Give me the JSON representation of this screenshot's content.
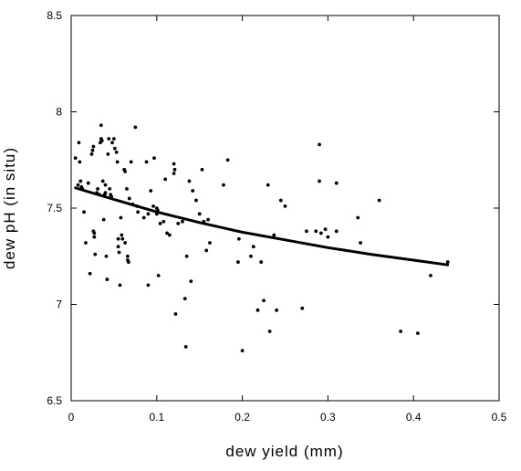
{
  "chart_data": {
    "type": "scatter",
    "title": "",
    "xlabel": "dew yield (mm)",
    "ylabel": "dew pH (in situ)",
    "xlim": [
      0,
      0.5
    ],
    "ylim": [
      6.5,
      8.5
    ],
    "x_ticks": [
      0,
      0.1,
      0.2,
      0.3,
      0.4,
      0.5
    ],
    "x_tick_labels": [
      "0",
      "0.1",
      "0.2",
      "0.3",
      "0.4",
      "0.5"
    ],
    "y_ticks": [
      6.5,
      7,
      7.5,
      8,
      8.5
    ],
    "y_tick_labels": [
      "6.5",
      "7",
      "7.5",
      "8",
      "8.5"
    ],
    "grid": false,
    "legend": "none",
    "marker_color": "#000000",
    "line_color": "#000000",
    "series": [
      {
        "type": "scatter",
        "points": [
          [
            0.005,
            7.76
          ],
          [
            0.008,
            7.62
          ],
          [
            0.009,
            7.84
          ],
          [
            0.01,
            7.74
          ],
          [
            0.011,
            7.64
          ],
          [
            0.012,
            7.61
          ],
          [
            0.013,
            7.6
          ],
          [
            0.015,
            7.48
          ],
          [
            0.017,
            7.32
          ],
          [
            0.02,
            7.63
          ],
          [
            0.022,
            7.16
          ],
          [
            0.024,
            7.78
          ],
          [
            0.025,
            7.8
          ],
          [
            0.026,
            7.82
          ],
          [
            0.026,
            7.38
          ],
          [
            0.027,
            7.37
          ],
          [
            0.027,
            7.35
          ],
          [
            0.028,
            7.26
          ],
          [
            0.03,
            7.58
          ],
          [
            0.031,
            7.6
          ],
          [
            0.033,
            7.57
          ],
          [
            0.034,
            7.84
          ],
          [
            0.035,
            7.93
          ],
          [
            0.035,
            7.86
          ],
          [
            0.036,
            7.85
          ],
          [
            0.037,
            7.64
          ],
          [
            0.038,
            7.44
          ],
          [
            0.039,
            7.57
          ],
          [
            0.04,
            7.62
          ],
          [
            0.04,
            7.58
          ],
          [
            0.041,
            7.25
          ],
          [
            0.042,
            7.13
          ],
          [
            0.043,
            7.78
          ],
          [
            0.044,
            7.86
          ],
          [
            0.045,
            7.6
          ],
          [
            0.046,
            7.57
          ],
          [
            0.047,
            7.56
          ],
          [
            0.048,
            7.84
          ],
          [
            0.05,
            7.86
          ],
          [
            0.051,
            7.81
          ],
          [
            0.053,
            7.79
          ],
          [
            0.054,
            7.74
          ],
          [
            0.055,
            7.34
          ],
          [
            0.055,
            7.3
          ],
          [
            0.056,
            7.27
          ],
          [
            0.057,
            7.1
          ],
          [
            0.058,
            7.45
          ],
          [
            0.059,
            7.36
          ],
          [
            0.06,
            7.34
          ],
          [
            0.062,
            7.7
          ],
          [
            0.063,
            7.69
          ],
          [
            0.063,
            7.32
          ],
          [
            0.065,
            7.6
          ],
          [
            0.066,
            7.25
          ],
          [
            0.066,
            7.23
          ],
          [
            0.067,
            7.22
          ],
          [
            0.068,
            7.55
          ],
          [
            0.07,
            7.74
          ],
          [
            0.072,
            7.52
          ],
          [
            0.075,
            7.92
          ],
          [
            0.077,
            7.51
          ],
          [
            0.078,
            7.48
          ],
          [
            0.085,
            7.45
          ],
          [
            0.088,
            7.74
          ],
          [
            0.09,
            7.47
          ],
          [
            0.09,
            7.1
          ],
          [
            0.093,
            7.59
          ],
          [
            0.096,
            7.51
          ],
          [
            0.097,
            7.76
          ],
          [
            0.1,
            7.5
          ],
          [
            0.1,
            7.47
          ],
          [
            0.101,
            7.49
          ],
          [
            0.102,
            7.15
          ],
          [
            0.104,
            7.42
          ],
          [
            0.108,
            7.43
          ],
          [
            0.11,
            7.65
          ],
          [
            0.112,
            7.37
          ],
          [
            0.115,
            7.36
          ],
          [
            0.12,
            7.68
          ],
          [
            0.12,
            7.73
          ],
          [
            0.121,
            7.7
          ],
          [
            0.122,
            6.95
          ],
          [
            0.125,
            7.42
          ],
          [
            0.13,
            7.43
          ],
          [
            0.133,
            7.03
          ],
          [
            0.134,
            6.78
          ],
          [
            0.135,
            7.25
          ],
          [
            0.138,
            7.64
          ],
          [
            0.14,
            7.12
          ],
          [
            0.142,
            7.59
          ],
          [
            0.146,
            7.54
          ],
          [
            0.15,
            7.47
          ],
          [
            0.153,
            7.7
          ],
          [
            0.155,
            7.43
          ],
          [
            0.158,
            7.28
          ],
          [
            0.16,
            7.44
          ],
          [
            0.162,
            7.32
          ],
          [
            0.178,
            7.62
          ],
          [
            0.183,
            7.75
          ],
          [
            0.195,
            7.22
          ],
          [
            0.196,
            7.34
          ],
          [
            0.2,
            6.76
          ],
          [
            0.21,
            7.25
          ],
          [
            0.213,
            7.3
          ],
          [
            0.218,
            6.97
          ],
          [
            0.222,
            7.22
          ],
          [
            0.225,
            7.02
          ],
          [
            0.23,
            7.62
          ],
          [
            0.232,
            6.86
          ],
          [
            0.237,
            7.36
          ],
          [
            0.24,
            6.97
          ],
          [
            0.245,
            7.54
          ],
          [
            0.25,
            7.51
          ],
          [
            0.27,
            6.98
          ],
          [
            0.275,
            7.38
          ],
          [
            0.286,
            7.38
          ],
          [
            0.29,
            7.83
          ],
          [
            0.29,
            7.64
          ],
          [
            0.292,
            7.37
          ],
          [
            0.297,
            7.39
          ],
          [
            0.3,
            7.35
          ],
          [
            0.31,
            7.63
          ],
          [
            0.31,
            7.38
          ],
          [
            0.335,
            7.45
          ],
          [
            0.338,
            7.32
          ],
          [
            0.36,
            7.54
          ],
          [
            0.385,
            6.86
          ],
          [
            0.405,
            6.85
          ],
          [
            0.42,
            7.15
          ],
          [
            0.44,
            7.22
          ]
        ]
      },
      {
        "type": "line",
        "points": [
          [
            0.005,
            7.605
          ],
          [
            0.05,
            7.545
          ],
          [
            0.1,
            7.48
          ],
          [
            0.15,
            7.425
          ],
          [
            0.2,
            7.375
          ],
          [
            0.25,
            7.335
          ],
          [
            0.3,
            7.295
          ],
          [
            0.35,
            7.26
          ],
          [
            0.4,
            7.23
          ],
          [
            0.44,
            7.205
          ]
        ]
      }
    ]
  }
}
